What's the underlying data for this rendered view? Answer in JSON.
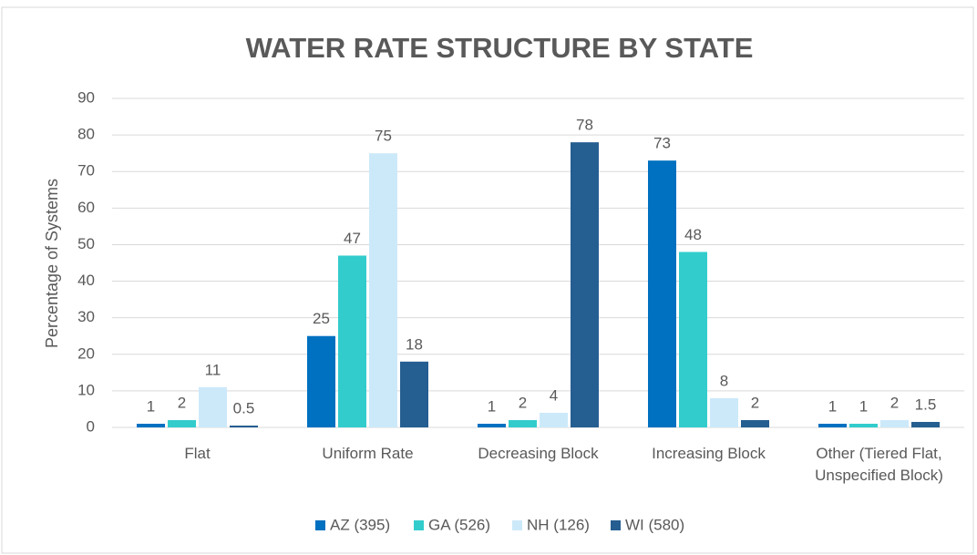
{
  "chart_data": {
    "type": "bar",
    "title": "WATER RATE STRUCTURE BY STATE",
    "y_label": "Percentage of Systems",
    "categories": [
      "Flat",
      "Uniform Rate",
      "Decreasing Block",
      "Increasing Block",
      "Other (Tiered Flat, Unspecified Block)"
    ],
    "series": [
      {
        "name": "AZ (395)",
        "color": "#0070c0",
        "values": [
          1,
          25,
          1,
          73,
          1
        ]
      },
      {
        "name": "GA (526)",
        "color": "#33cccc",
        "values": [
          2,
          47,
          2,
          48,
          1
        ]
      },
      {
        "name": "NH (126)",
        "color": "#cce9fa",
        "values": [
          11,
          75,
          4,
          8,
          2
        ]
      },
      {
        "name": "WI (580)",
        "color": "#255e91",
        "values": [
          0.5,
          18,
          78,
          2,
          1.5
        ]
      }
    ],
    "ylim": [
      0,
      90
    ],
    "yticks": [
      0,
      10,
      20,
      30,
      40,
      50,
      60,
      70,
      80,
      90
    ],
    "grid": true,
    "legend": "bottom"
  }
}
